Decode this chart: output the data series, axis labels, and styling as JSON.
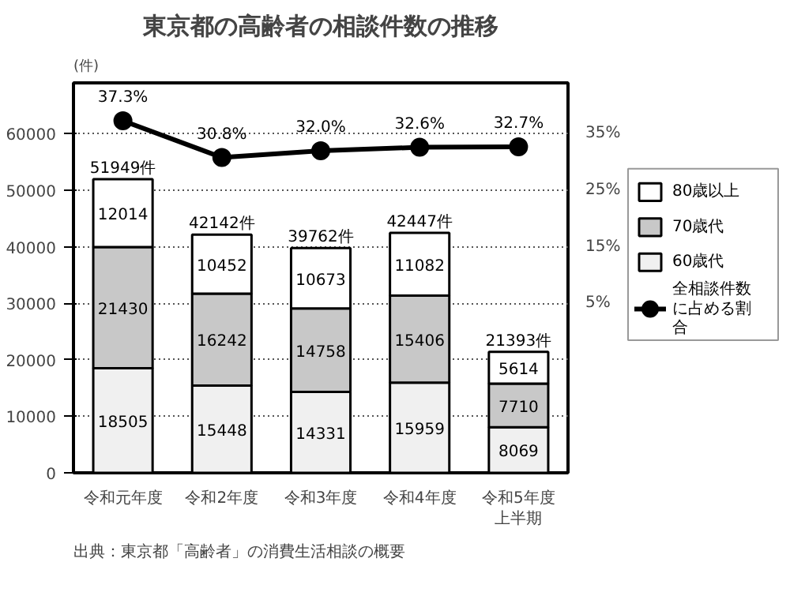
{
  "chart_data": {
    "type": "bar",
    "title": "東京都の高齢者の相談件数の推移",
    "ylabel": "(件)",
    "categories": [
      "令和元年度",
      "令和2年度",
      "令和3年度",
      "令和4年度",
      "令和5年度上半期"
    ],
    "stacked": true,
    "series": [
      {
        "name": "60歳代",
        "color": "#f0f0f0",
        "values": [
          18505,
          15448,
          14331,
          15959,
          8069
        ],
        "value_labels": [
          "18505",
          "15448",
          "14331",
          "15959",
          "8069"
        ]
      },
      {
        "name": "70歳代",
        "color": "#c8c8c8",
        "values": [
          21430,
          16242,
          14758,
          15406,
          7710
        ],
        "value_labels": [
          "21430",
          "16242",
          "14758",
          "15406",
          "7710"
        ]
      },
      {
        "name": "80歳以上",
        "color": "#ffffff",
        "values": [
          12014,
          10452,
          10673,
          11082,
          5614
        ],
        "value_labels": [
          "12014",
          "10452",
          "10673",
          "11082",
          "5614"
        ]
      },
      {
        "name": "全相談件数に占める割合",
        "type": "line",
        "axis": "y2",
        "color": "#000000",
        "values": [
          37.3,
          30.8,
          32.0,
          32.6,
          32.7
        ],
        "value_labels": [
          "37.3%",
          "30.8%",
          "32.0%",
          "32.6%",
          "32.7%"
        ]
      }
    ],
    "totals": [
      "51949件",
      "42142件",
      "39762件",
      "42447件",
      "21393件"
    ],
    "ylim": [
      0,
      69000
    ],
    "yticks": [
      0,
      10000,
      20000,
      30000,
      40000,
      50000,
      60000
    ],
    "y2lim": [
      -25,
      44
    ],
    "y2ticks": [
      {
        "value": 5,
        "label": "5%"
      },
      {
        "value": 15,
        "label": "15%"
      },
      {
        "value": 25,
        "label": "25%"
      },
      {
        "value": 35,
        "label": "35%"
      }
    ],
    "grid": "y",
    "legend": "right",
    "marker": "circle",
    "annotations": [
      "出典：東京都「高齢者」の消費生活相談の概要"
    ]
  }
}
